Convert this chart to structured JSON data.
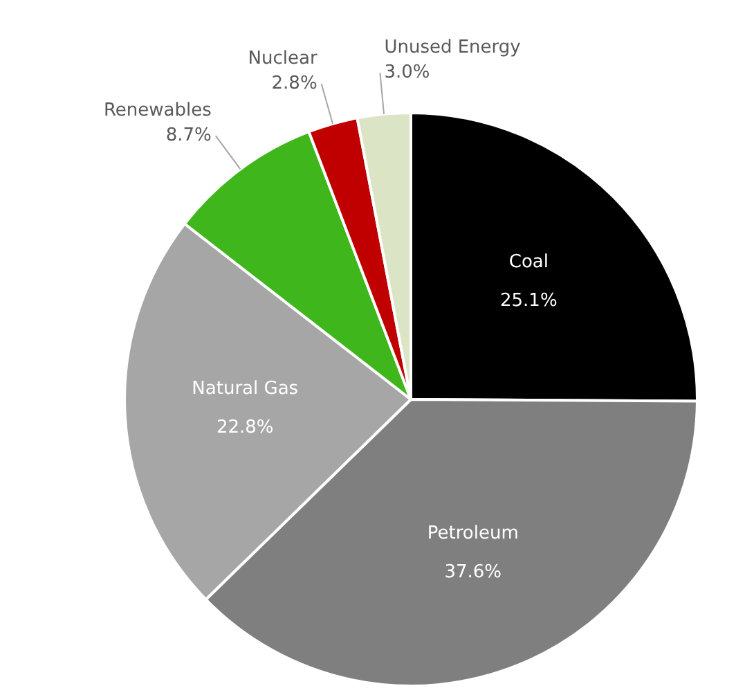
{
  "chart_data": {
    "type": "pie",
    "categories": [
      "Coal",
      "Petroleum",
      "Natural Gas",
      "Renewables",
      "Nuclear",
      "Unused Energy"
    ],
    "values": [
      25.1,
      37.6,
      22.8,
      8.7,
      2.8,
      3.0
    ],
    "value_labels": [
      "25.1%",
      "37.6%",
      "22.8%",
      "8.7%",
      "2.8%",
      "3.0%"
    ],
    "colors": [
      "#000000",
      "#7f7f7f",
      "#a6a6a6",
      "#3fb61c",
      "#c00000",
      "#dbe5c6"
    ],
    "legend": false
  }
}
